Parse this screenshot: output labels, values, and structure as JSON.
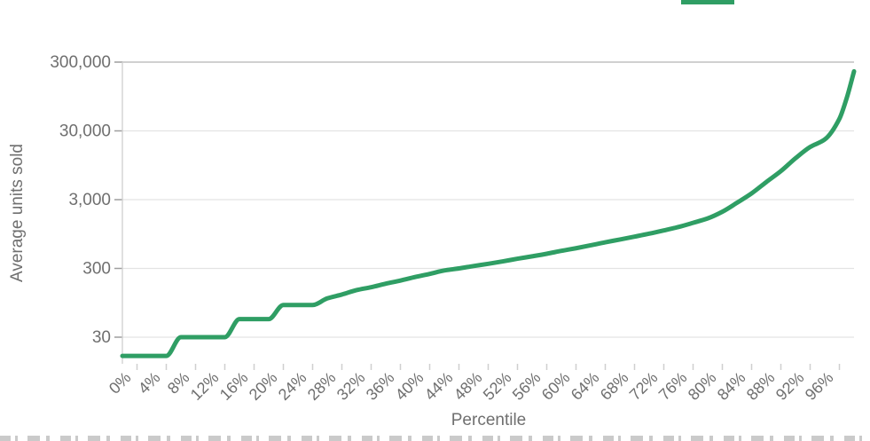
{
  "chart": {
    "legend": {
      "swatch_color": "#2f9e64"
    },
    "y_axis": {
      "title": "Average units sold",
      "ticks": [
        "300,000",
        "30,000",
        "3,000",
        "300",
        "30"
      ],
      "tick_values": [
        300000,
        30000,
        3000,
        300,
        30
      ]
    },
    "x_axis": {
      "title": "Percentile",
      "ticks": [
        "0%",
        "4%",
        "8%",
        "12%",
        "16%",
        "20%",
        "24%",
        "28%",
        "32%",
        "36%",
        "40%",
        "44%",
        "48%",
        "52%",
        "56%",
        "60%",
        "64%",
        "68%",
        "72%",
        "76%",
        "80%",
        "84%",
        "88%",
        "92%",
        "96%"
      ],
      "tick_values": [
        0,
        4,
        8,
        12,
        16,
        20,
        24,
        28,
        32,
        36,
        40,
        44,
        48,
        52,
        56,
        60,
        64,
        68,
        72,
        76,
        80,
        84,
        88,
        92,
        96
      ]
    },
    "colors": {
      "line": "#2f9e64",
      "text": "#6f6f6f",
      "grid": "#e3e3e3",
      "frame": "#b5b5b5",
      "axis_line": "#cfcfcf",
      "tick": "#9e9e9e"
    }
  },
  "chart_data": {
    "type": "line",
    "title": "",
    "xlabel": "Percentile",
    "ylabel": "Average units sold",
    "x_scale": "linear",
    "y_scale": "log",
    "xlim": [
      0,
      100
    ],
    "ylim": [
      12,
      300000
    ],
    "grid": true,
    "legend_position": "top-right (swatch only, label cut off)",
    "x": [
      0,
      2,
      4,
      6,
      8,
      10,
      12,
      14,
      16,
      18,
      20,
      22,
      24,
      26,
      28,
      30,
      32,
      34,
      36,
      38,
      40,
      42,
      44,
      46,
      48,
      50,
      52,
      54,
      56,
      58,
      60,
      62,
      64,
      66,
      68,
      70,
      72,
      74,
      76,
      78,
      80,
      82,
      84,
      86,
      88,
      90,
      92,
      94,
      96,
      98,
      99,
      100
    ],
    "values": [
      16,
      16,
      16,
      16,
      30,
      30,
      30,
      30,
      55,
      55,
      55,
      88,
      88,
      88,
      110,
      125,
      145,
      160,
      180,
      200,
      225,
      250,
      280,
      300,
      325,
      350,
      380,
      415,
      450,
      490,
      540,
      590,
      650,
      720,
      790,
      870,
      960,
      1070,
      1200,
      1380,
      1600,
      2000,
      2700,
      3700,
      5400,
      7800,
      12000,
      17500,
      22500,
      45000,
      90000,
      220000
    ]
  }
}
